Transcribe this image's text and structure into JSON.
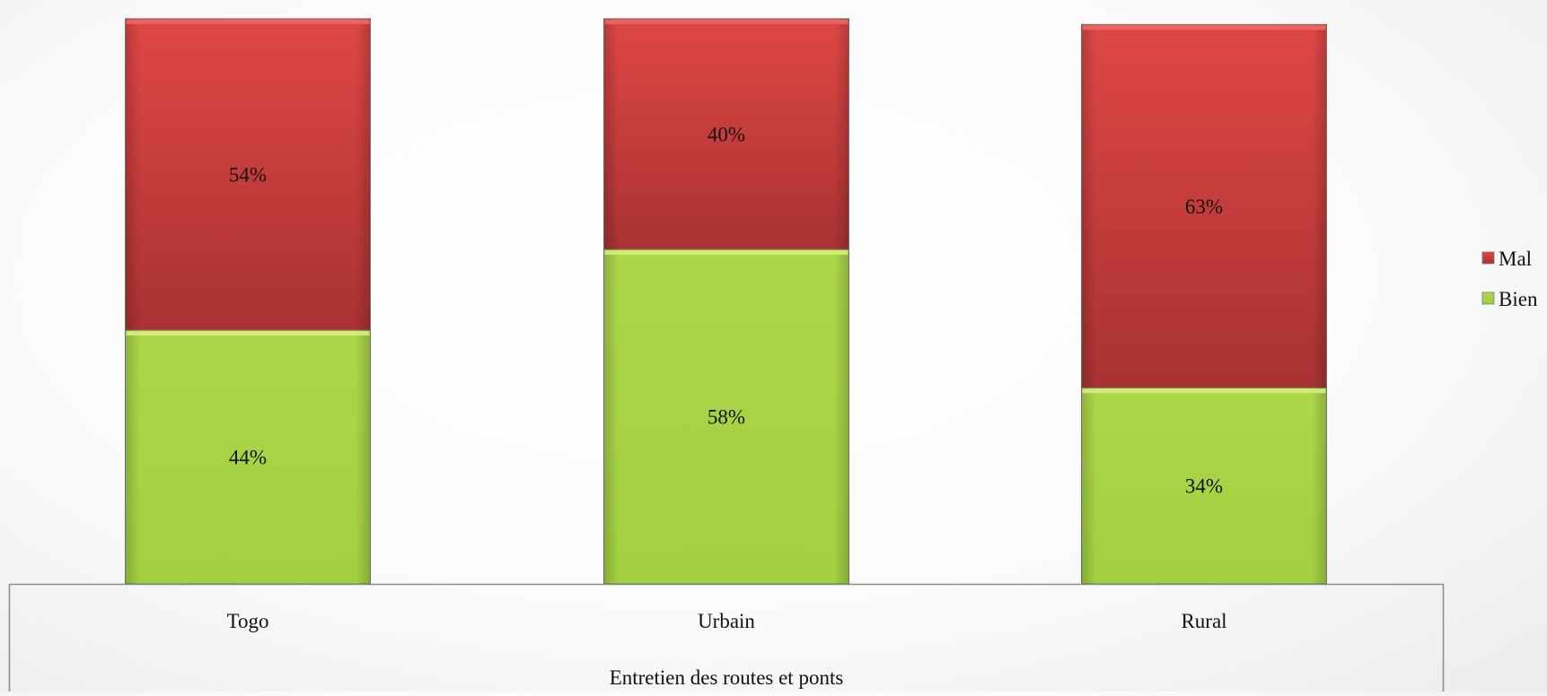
{
  "chart_data": {
    "type": "bar",
    "stacked": true,
    "categories": [
      "Togo",
      "Urbain",
      "Rural"
    ],
    "series": [
      {
        "name": "Bien",
        "values": [
          44,
          58,
          34
        ],
        "labels": [
          "44%",
          "58%",
          "34%"
        ],
        "color": "#a8d44a"
      },
      {
        "name": "Mal",
        "values": [
          54,
          40,
          63
        ],
        "labels": [
          "54%",
          "40%",
          "63%"
        ],
        "color": "#c43a38"
      }
    ],
    "xlabel": "Entretien des routes et ponts",
    "ylabel": "",
    "ylim": [
      0,
      100
    ],
    "grid": false,
    "legend_position": "right",
    "legend_order": [
      "Mal",
      "Bien"
    ]
  }
}
